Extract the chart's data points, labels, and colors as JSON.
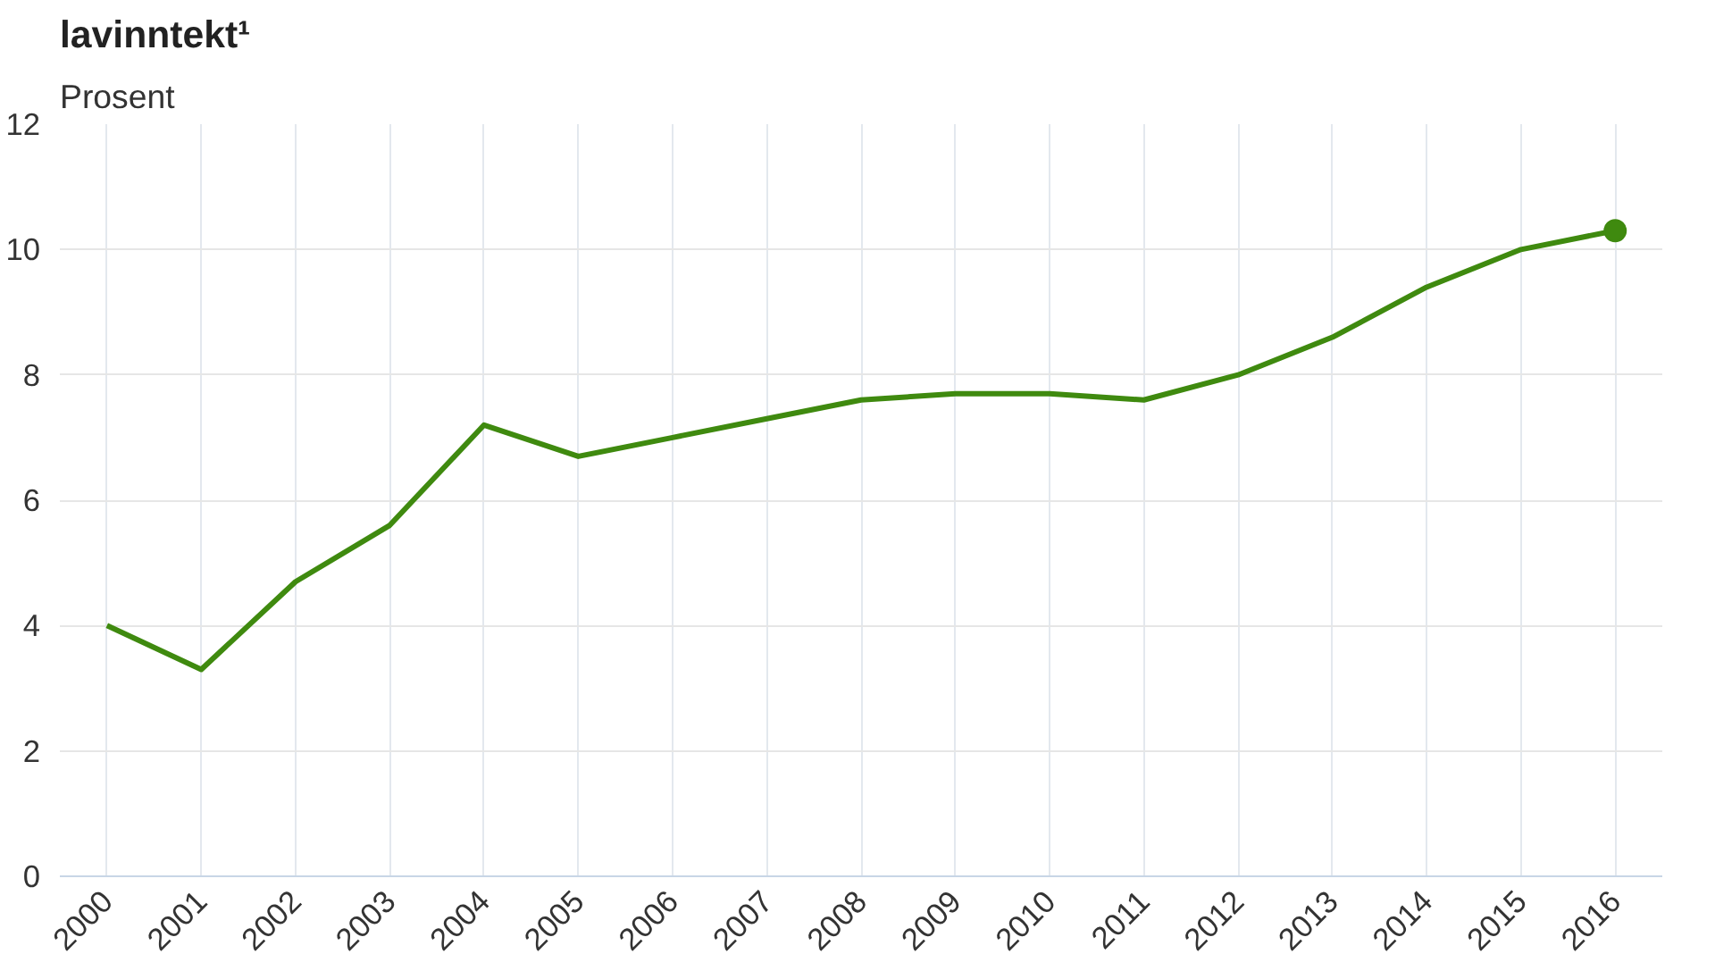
{
  "chart_data": {
    "type": "line",
    "title": "lavinntekt¹",
    "ylabel": "Prosent",
    "categories": [
      "2000",
      "2001",
      "2002",
      "2003",
      "2004",
      "2005",
      "2006",
      "2007",
      "2008",
      "2009",
      "2010",
      "2011",
      "2012",
      "2013",
      "2014",
      "2015",
      "2016"
    ],
    "series": [
      {
        "color": "#3f8a0f",
        "values": [
          4.0,
          3.3,
          4.7,
          5.6,
          7.2,
          6.7,
          7.0,
          7.3,
          7.6,
          7.7,
          7.7,
          7.6,
          8.0,
          8.6,
          9.4,
          10.0,
          10.3
        ]
      },
      {
        "type": "scatter",
        "marker": "circle",
        "color": "#3f8a0f",
        "values": [
          null,
          null,
          null,
          null,
          null,
          null,
          null,
          null,
          null,
          null,
          null,
          null,
          null,
          null,
          null,
          null,
          10.3
        ]
      }
    ],
    "ylim": [
      0,
      12
    ],
    "yticks": [
      0,
      2,
      4,
      6,
      8,
      10,
      12
    ],
    "grid": true,
    "marker": "none",
    "line_style": "solid"
  }
}
